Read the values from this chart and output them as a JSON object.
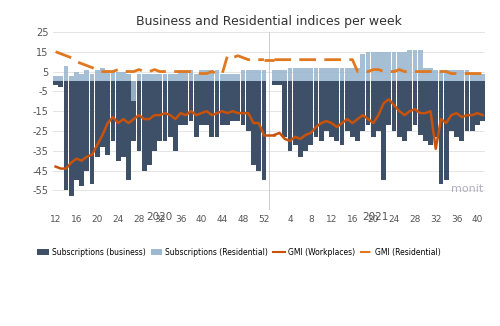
{
  "title": "Business and Residential indices per week",
  "background_color": "#ffffff",
  "plot_bg_color": "#ffffff",
  "bar_business_color": "#3d5068",
  "bar_residential_color": "#9db8d0",
  "line_workplaces_color": "#c8520a",
  "line_residential_color": "#e07820",
  "ylim": [
    -65,
    25
  ],
  "weeks_2020": [
    12,
    13,
    14,
    15,
    16,
    17,
    18,
    19,
    20,
    21,
    22,
    23,
    24,
    25,
    26,
    27,
    28,
    29,
    30,
    31,
    32,
    33,
    34,
    35,
    36,
    37,
    38,
    39,
    40,
    41,
    42,
    43,
    44,
    45,
    46,
    47,
    48,
    49,
    50,
    51,
    52
  ],
  "weeks_2021": [
    1,
    2,
    3,
    4,
    5,
    6,
    7,
    8,
    9,
    10,
    11,
    12,
    13,
    14,
    15,
    16,
    17,
    18,
    19,
    20,
    21,
    22,
    23,
    24,
    25,
    26,
    27,
    28,
    29,
    30,
    31,
    32,
    33,
    34,
    35,
    36,
    37,
    38,
    39,
    40,
    41
  ],
  "business_2020": [
    -2,
    -3,
    -55,
    -58,
    -50,
    -53,
    -45,
    -52,
    -38,
    -33,
    -37,
    -30,
    -40,
    -38,
    -50,
    -30,
    -35,
    -45,
    -42,
    -35,
    -30,
    -30,
    -28,
    -35,
    -22,
    -22,
    -20,
    -28,
    -22,
    -22,
    -28,
    -28,
    -22,
    -22,
    -20,
    -20,
    -22,
    -25,
    -42,
    -45,
    -50
  ],
  "business_2021": [
    -2,
    -2,
    -28,
    -35,
    -32,
    -38,
    -35,
    -32,
    -28,
    -30,
    -25,
    -28,
    -30,
    -32,
    -25,
    -28,
    -30,
    -25,
    -22,
    -28,
    -25,
    -50,
    -22,
    -25,
    -28,
    -30,
    -25,
    -22,
    -27,
    -30,
    -32,
    -28,
    -52,
    -50,
    -25,
    -28,
    -30,
    -25,
    -25,
    -22,
    -20
  ],
  "residential_2020": [
    3,
    3,
    8,
    3,
    5,
    4,
    6,
    4,
    6,
    7,
    6,
    5,
    5,
    5,
    4,
    -10,
    4,
    4,
    4,
    4,
    4,
    4,
    4,
    4,
    6,
    6,
    6,
    4,
    6,
    6,
    6,
    6,
    4,
    4,
    4,
    4,
    6,
    6,
    6,
    6,
    6
  ],
  "residential_2021": [
    6,
    6,
    6,
    7,
    7,
    7,
    7,
    7,
    7,
    7,
    7,
    7,
    7,
    7,
    7,
    7,
    7,
    14,
    15,
    15,
    15,
    15,
    15,
    15,
    15,
    15,
    16,
    16,
    16,
    7,
    7,
    6,
    6,
    6,
    6,
    6,
    6,
    6,
    4,
    4,
    4
  ],
  "gmi_workplaces_2020": [
    -43,
    -44,
    -44,
    -41,
    -39,
    -40,
    -38,
    -37,
    -32,
    -27,
    -21,
    -18,
    -21,
    -19,
    -21,
    -19,
    -17,
    -19,
    -19,
    -17,
    -17,
    -16,
    -17,
    -19,
    -16,
    -17,
    -15,
    -17,
    -16,
    -15,
    -17,
    -16,
    -15,
    -16,
    -15,
    -16,
    -16,
    -16,
    -21,
    -21,
    -27
  ],
  "gmi_workplaces_2021": [
    -27,
    -26,
    -29,
    -30,
    -28,
    -29,
    -27,
    -26,
    -23,
    -21,
    -20,
    -21,
    -23,
    -21,
    -19,
    -21,
    -19,
    -17,
    -19,
    -21,
    -17,
    -11,
    -9,
    -12,
    -15,
    -17,
    -15,
    -14,
    -16,
    -16,
    -15,
    -34,
    -19,
    -21,
    -17,
    -16,
    -18,
    -17,
    -17,
    -16,
    -17
  ],
  "gmi_residential_2020": [
    15,
    14,
    13,
    12,
    10,
    9,
    8,
    7,
    6,
    5,
    5,
    5,
    6,
    5,
    5,
    5,
    6,
    5,
    5,
    6,
    5,
    5,
    5,
    5,
    5,
    5,
    5,
    4,
    4,
    4,
    5,
    4,
    4,
    13,
    12,
    13,
    12,
    11,
    11,
    11,
    11
  ],
  "gmi_residential_2021": [
    11,
    11,
    11,
    11,
    11,
    11,
    11,
    11,
    11,
    11,
    11,
    11,
    11,
    11,
    11,
    11,
    5,
    5,
    5,
    6,
    6,
    5,
    5,
    5,
    6,
    5,
    5,
    5,
    5,
    5,
    5,
    5,
    5,
    5,
    4,
    4,
    4,
    4,
    4,
    4,
    4
  ]
}
